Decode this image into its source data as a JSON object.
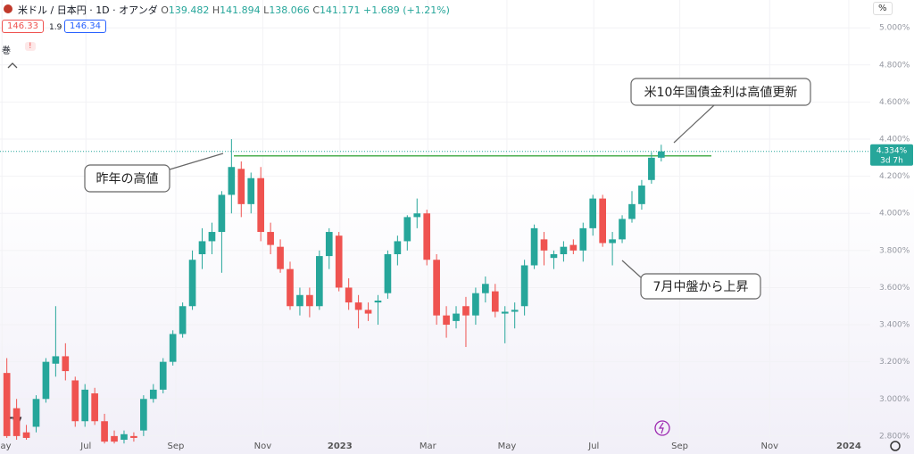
{
  "header": {
    "title": "米ドル / 日本円 · 1D · オアンダ",
    "ohlc": [
      {
        "label": "O",
        "value": "139.482"
      },
      {
        "label": "H",
        "value": "141.894"
      },
      {
        "label": "L",
        "value": "138.066"
      },
      {
        "label": "C",
        "value": "141.171"
      }
    ],
    "change": "+1.689 (+1.21%)",
    "sell": "146.33",
    "spread": "1.9",
    "buy": "146.34",
    "scale_button": "%",
    "indicator_label": "巻",
    "alert": "!"
  },
  "chart_data": {
    "type": "candlestick",
    "x": [
      0,
      1,
      2,
      3,
      4,
      5,
      6,
      7,
      8,
      9,
      10,
      11,
      12,
      13,
      14,
      15,
      16,
      17,
      18,
      19,
      20,
      21,
      22,
      23,
      24,
      25,
      26,
      27,
      28,
      29,
      30,
      31,
      32,
      33,
      34,
      35,
      36,
      37,
      38,
      39,
      40,
      41,
      42,
      43,
      44,
      45,
      46,
      47,
      48,
      49,
      50,
      51,
      52,
      53,
      54,
      55,
      56,
      57,
      58,
      59,
      60,
      61,
      62,
      63,
      64,
      65,
      66,
      67
    ],
    "open": [
      3.14,
      2.95,
      2.82,
      2.85,
      3.0,
      3.19,
      3.23,
      3.1,
      2.88,
      3.03,
      2.88,
      2.8,
      2.78,
      2.8,
      2.83,
      3.0,
      3.05,
      3.2,
      3.35,
      3.5,
      3.78,
      3.85,
      3.9,
      4.1,
      4.24,
      4.05,
      4.19,
      3.9,
      3.82,
      3.7,
      3.5,
      3.56,
      3.5,
      3.77,
      3.88,
      3.6,
      3.52,
      3.48,
      3.52,
      3.57,
      3.78,
      3.85,
      3.98,
      4.0,
      3.75,
      3.45,
      3.42,
      3.5,
      3.45,
      3.57,
      3.58,
      3.46,
      3.47,
      3.5,
      3.72,
      3.86,
      3.76,
      3.78,
      3.83,
      3.8,
      3.92,
      4.08,
      3.84,
      3.86,
      3.97,
      4.05,
      4.18,
      4.3
    ],
    "high": [
      3.22,
      3.0,
      2.86,
      3.02,
      3.22,
      3.5,
      3.3,
      3.12,
      3.08,
      3.06,
      2.92,
      2.83,
      2.83,
      2.82,
      3.02,
      3.08,
      3.22,
      3.37,
      3.52,
      3.8,
      3.92,
      3.95,
      4.12,
      4.4,
      4.28,
      4.22,
      4.25,
      3.95,
      3.86,
      3.74,
      3.6,
      3.6,
      3.8,
      3.92,
      3.9,
      3.65,
      3.56,
      3.52,
      3.56,
      3.8,
      3.88,
      3.99,
      4.08,
      4.02,
      3.78,
      3.5,
      3.5,
      3.55,
      3.6,
      3.66,
      3.62,
      3.5,
      3.52,
      3.75,
      3.94,
      3.9,
      3.8,
      3.85,
      3.86,
      3.95,
      4.1,
      4.1,
      3.9,
      3.99,
      4.12,
      4.18,
      4.33,
      4.37
    ],
    "low": [
      2.79,
      2.78,
      2.78,
      2.82,
      2.98,
      3.12,
      3.1,
      2.85,
      2.85,
      2.86,
      2.76,
      2.76,
      2.76,
      2.77,
      2.8,
      2.98,
      3.03,
      3.18,
      3.33,
      3.48,
      3.7,
      3.78,
      3.68,
      4.0,
      3.98,
      4.0,
      3.85,
      3.78,
      3.68,
      3.48,
      3.45,
      3.44,
      3.48,
      3.7,
      3.58,
      3.48,
      3.38,
      3.42,
      3.4,
      3.54,
      3.72,
      3.8,
      3.92,
      3.72,
      3.4,
      3.33,
      3.38,
      3.28,
      3.4,
      3.52,
      3.44,
      3.3,
      3.38,
      3.45,
      3.7,
      3.72,
      3.7,
      3.74,
      3.78,
      3.74,
      3.88,
      3.82,
      3.72,
      3.84,
      3.95,
      4.02,
      4.16,
      4.28
    ],
    "close": [
      2.8,
      2.8,
      2.79,
      3.0,
      3.2,
      3.23,
      3.15,
      2.88,
      3.05,
      2.88,
      2.77,
      2.77,
      2.81,
      2.79,
      3.0,
      3.05,
      3.2,
      3.35,
      3.5,
      3.75,
      3.85,
      3.9,
      4.1,
      4.25,
      4.05,
      4.19,
      3.9,
      3.83,
      3.7,
      3.5,
      3.56,
      3.5,
      3.77,
      3.9,
      3.6,
      3.52,
      3.48,
      3.46,
      3.53,
      3.78,
      3.85,
      3.98,
      4.0,
      3.75,
      3.45,
      3.4,
      3.46,
      3.45,
      3.57,
      3.62,
      3.47,
      3.47,
      3.48,
      3.72,
      3.92,
      3.8,
      3.78,
      3.82,
      3.8,
      3.92,
      4.08,
      3.84,
      3.86,
      3.97,
      4.05,
      4.15,
      4.3,
      4.334
    ],
    "up_color": "#26a69a",
    "down_color": "#ef5350",
    "xlim": [
      -0.7,
      88.4
    ],
    "xticks": [
      {
        "value": -0.5,
        "label": "May"
      },
      {
        "value": 8.1,
        "label": "Jul"
      },
      {
        "value": 17.3,
        "label": "Sep"
      },
      {
        "value": 26.2,
        "label": "Nov"
      },
      {
        "value": 34.1,
        "label": "2023"
      },
      {
        "value": 43.1,
        "label": "Mar"
      },
      {
        "value": 51.2,
        "label": "May"
      },
      {
        "value": 60.1,
        "label": "Jul"
      },
      {
        "value": 68.9,
        "label": "Sep"
      },
      {
        "value": 78.1,
        "label": "Nov"
      },
      {
        "value": 86.2,
        "label": "2024"
      }
    ],
    "ylim": [
      2.785,
      5.15
    ],
    "yticks": [
      {
        "value": 5.0,
        "label": "5.000%"
      },
      {
        "value": 4.8,
        "label": "4.800%"
      },
      {
        "value": 4.6,
        "label": "4.600%"
      },
      {
        "value": 4.4,
        "label": "4.400%"
      },
      {
        "value": 4.2,
        "label": "4.200%"
      },
      {
        "value": 4.0,
        "label": "4.000%"
      },
      {
        "value": 3.8,
        "label": "3.800%"
      },
      {
        "value": 3.6,
        "label": "3.600%"
      },
      {
        "value": 3.4,
        "label": "3.400%"
      },
      {
        "value": 3.2,
        "label": "3.200%"
      },
      {
        "value": 3.0,
        "label": "3.000%"
      },
      {
        "value": 2.8,
        "label": "2.800%"
      }
    ],
    "grid": true,
    "last_label": "4.334%",
    "countdown": "3d 7h",
    "level_line": {
      "value": 4.31,
      "color": "#4caf50"
    },
    "annotations": [
      "昨年の高値",
      "米10年国債金利は高値更新",
      "7月中盤から上昇"
    ]
  }
}
